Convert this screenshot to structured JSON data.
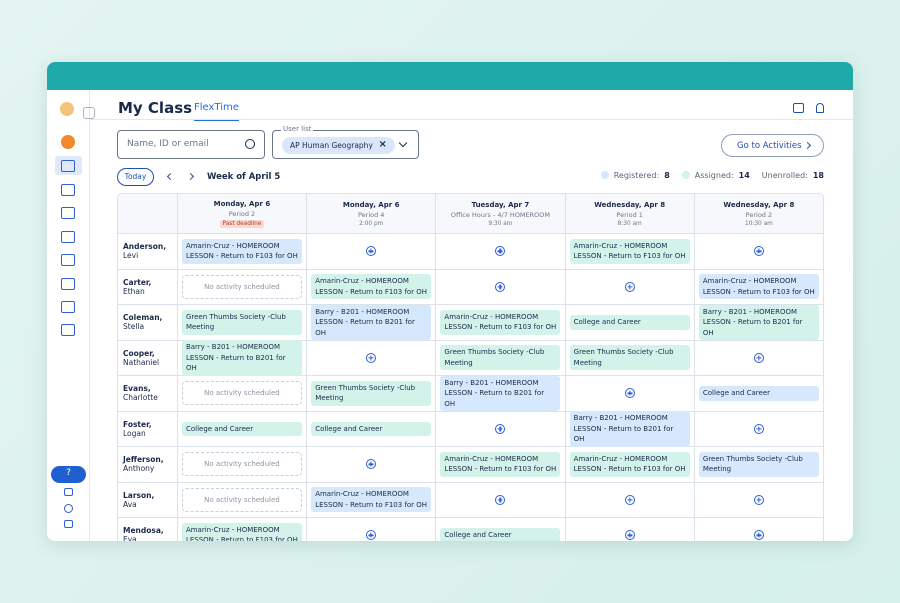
{
  "header": {
    "title": "My Class",
    "tab": "FlexTime"
  },
  "search": {
    "placeholder": "Name, ID or email"
  },
  "user_list": {
    "label": "User list",
    "chip": "AP Human Geography"
  },
  "go_button": "Go to Activities",
  "week_nav": {
    "today": "Today",
    "week": "Week of April 5"
  },
  "stats": [
    {
      "label": "Registered:",
      "value": 8,
      "color": "#d6e8fb"
    },
    {
      "label": "Assigned:",
      "value": 14,
      "color": "#d3f2ea"
    },
    {
      "label": "Unenrolled:",
      "value": 18
    }
  ],
  "help": "?",
  "columns": [
    {
      "day": "Monday, Apr 6",
      "period": "Period 2",
      "badge": "Past deadline"
    },
    {
      "day": "Monday, Apr 6",
      "period": "Period 4",
      "time": "2:00 pm"
    },
    {
      "day": "Tuesday, Apr 7",
      "period": "Office Hours - 4/7 HOMEROOM",
      "time": "9:30 am"
    },
    {
      "day": "Wednesday, Apr 8",
      "period": "Period 1",
      "time": "8:30 am"
    },
    {
      "day": "Wednesday, Apr 8",
      "period": "Period 2",
      "time": "10:30 am"
    }
  ],
  "rows": [
    {
      "last": "Anderson,",
      "first": "Levi",
      "cells": [
        {
          "kind": "activity",
          "tone": "blue",
          "text": "Amarin-Cruz - HOMEROOM LESSON - Return to F103 for OH"
        },
        {
          "kind": "add"
        },
        {
          "kind": "add"
        },
        {
          "kind": "activity",
          "tone": "green",
          "text": "Amarin-Cruz - HOMEROOM LESSON - Return to F103 for OH"
        },
        {
          "kind": "add"
        }
      ]
    },
    {
      "last": "Carter,",
      "first": "Ethan",
      "cells": [
        {
          "kind": "empty",
          "text": "No activity scheduled"
        },
        {
          "kind": "activity",
          "tone": "green",
          "text": "Amarin-Cruz - HOMEROOM LESSON - Return to F103 for OH"
        },
        {
          "kind": "add"
        },
        {
          "kind": "add"
        },
        {
          "kind": "activity",
          "tone": "blue",
          "text": "Amarin-Cruz - HOMEROOM LESSON - Return to F103 for OH"
        }
      ]
    },
    {
      "last": "Coleman,",
      "first": "Stella",
      "cells": [
        {
          "kind": "activity",
          "tone": "green",
          "text": "Green Thumbs Society -Club Meeting"
        },
        {
          "kind": "activity",
          "tone": "blue",
          "text": "Barry - B201 - HOMEROOM LESSON - Return to B201 for OH"
        },
        {
          "kind": "activity",
          "tone": "green",
          "text": "Amarin-Cruz - HOMEROOM LESSON - Return to F103 for OH"
        },
        {
          "kind": "activity",
          "tone": "green",
          "text": "College and Career"
        },
        {
          "kind": "activity",
          "tone": "green",
          "text": "Barry - B201 - HOMEROOM LESSON - Return to B201 for OH"
        }
      ]
    },
    {
      "last": "Cooper,",
      "first": "Nathaniel",
      "cells": [
        {
          "kind": "activity",
          "tone": "green",
          "text": "Barry - B201 - HOMEROOM LESSON - Return to B201 for OH"
        },
        {
          "kind": "add"
        },
        {
          "kind": "activity",
          "tone": "green",
          "text": "Green Thumbs Society -Club Meeting"
        },
        {
          "kind": "activity",
          "tone": "green",
          "text": "Green Thumbs Society -Club Meeting"
        },
        {
          "kind": "add"
        }
      ]
    },
    {
      "last": "Evans,",
      "first": "Charlotte",
      "cells": [
        {
          "kind": "empty",
          "text": "No activity scheduled"
        },
        {
          "kind": "activity",
          "tone": "green",
          "text": "Green Thumbs Society -Club Meeting"
        },
        {
          "kind": "activity",
          "tone": "blue",
          "text": "Barry - B201 - HOMEROOM LESSON - Return to B201 for OH"
        },
        {
          "kind": "add"
        },
        {
          "kind": "activity",
          "tone": "blue",
          "text": "College and Career"
        }
      ]
    },
    {
      "last": "Foster,",
      "first": "Logan",
      "cells": [
        {
          "kind": "activity",
          "tone": "green",
          "text": "College and Career"
        },
        {
          "kind": "activity",
          "tone": "green",
          "text": "College and Career"
        },
        {
          "kind": "add"
        },
        {
          "kind": "activity",
          "tone": "blue",
          "text": "Barry - B201 - HOMEROOM LESSON - Return to B201 for OH"
        },
        {
          "kind": "add"
        }
      ]
    },
    {
      "last": "Jefferson,",
      "first": "Anthony",
      "cells": [
        {
          "kind": "empty",
          "text": "No activity scheduled"
        },
        {
          "kind": "add"
        },
        {
          "kind": "activity",
          "tone": "green",
          "text": "Amarin-Cruz - HOMEROOM LESSON - Return to F103 for OH"
        },
        {
          "kind": "activity",
          "tone": "green",
          "text": "Amarin-Cruz - HOMEROOM LESSON - Return to F103 for OH"
        },
        {
          "kind": "activity",
          "tone": "blue",
          "text": "Green Thumbs Society -Club Meeting"
        }
      ]
    },
    {
      "last": "Larson,",
      "first": "Ava",
      "cells": [
        {
          "kind": "empty",
          "text": "No activity scheduled"
        },
        {
          "kind": "activity",
          "tone": "blue",
          "text": "Amarin-Cruz - HOMEROOM LESSON - Return to F103 for OH"
        },
        {
          "kind": "add"
        },
        {
          "kind": "add"
        },
        {
          "kind": "add"
        }
      ]
    },
    {
      "last": "Mendosa,",
      "first": "Eva",
      "cells": [
        {
          "kind": "activity",
          "tone": "green",
          "text": "Amarin-Cruz - HOMEROOM LESSON - Return to F103 for OH"
        },
        {
          "kind": "add"
        },
        {
          "kind": "activity",
          "tone": "green",
          "text": "College and Career"
        },
        {
          "kind": "add"
        },
        {
          "kind": "add"
        }
      ]
    }
  ]
}
